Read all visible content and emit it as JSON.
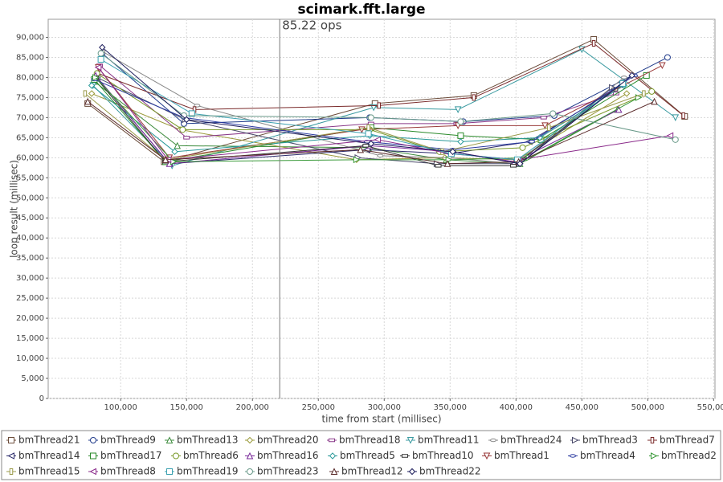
{
  "chart_data": {
    "type": "line",
    "title": "scimark.fft.large",
    "x_label": "time from start (millisec)",
    "y_label": "loop result (millisec)",
    "xlim": [
      45000,
      551000
    ],
    "ylim": [
      0,
      94500
    ],
    "grid": true,
    "legend": "bottom",
    "marker": {
      "x": 220700,
      "label": "85.22 ops"
    },
    "xticks": [
      {
        "value": 100000,
        "label": "100,000"
      },
      {
        "value": 150000,
        "label": "150,000"
      },
      {
        "value": 200000,
        "label": "200,000"
      },
      {
        "value": 250000,
        "label": "250,000"
      },
      {
        "value": 300000,
        "label": "300,000"
      },
      {
        "value": 350000,
        "label": "350,000"
      },
      {
        "value": 400000,
        "label": "400,000"
      },
      {
        "value": 450000,
        "label": "450,000"
      },
      {
        "value": 500000,
        "label": "500,000"
      },
      {
        "value": 550000,
        "label": "550,000"
      }
    ],
    "yticks": [
      0,
      {
        "value": 5000,
        "label": "5,000"
      },
      {
        "value": 10000,
        "label": "10,000"
      },
      {
        "value": 15000,
        "label": "15,000"
      },
      {
        "value": 20000,
        "label": "20,000"
      },
      {
        "value": 25000,
        "label": "25,000"
      },
      {
        "value": 30000,
        "label": "30,000"
      },
      {
        "value": 35000,
        "label": "35,000"
      },
      {
        "value": 40000,
        "label": "40,000"
      },
      {
        "value": 45000,
        "label": "45,000"
      },
      {
        "value": 50000,
        "label": "50,000"
      },
      {
        "value": 55000,
        "label": "55,000"
      },
      {
        "value": 60000,
        "label": "60,000"
      },
      {
        "value": 65000,
        "label": "65,000"
      },
      {
        "value": 70000,
        "label": "70,000"
      },
      {
        "value": 75000,
        "label": "75,000"
      },
      {
        "value": 80000,
        "label": "80,000"
      },
      {
        "value": 85000,
        "label": "85,000"
      },
      {
        "value": 90000,
        "label": "90,000"
      }
    ],
    "series": [
      {
        "name": "bmThread21",
        "color": "#6b4c3a",
        "x": [
          75000,
          133000,
          293000,
          368000,
          459000,
          528000
        ],
        "values": [
          73500,
          59000,
          73500,
          75500,
          89500,
          70300
        ]
      },
      {
        "name": "bmThread9",
        "color": "#1f3a8a",
        "x": [
          86000,
          148000,
          289000,
          360000,
          429000,
          515000
        ],
        "values": [
          86000,
          68500,
          70000,
          69000,
          70500,
          85000
        ]
      },
      {
        "name": "bmThread13",
        "color": "#3a8a3a",
        "x": [
          80000,
          143000,
          288000,
          347000,
          403000,
          477000
        ],
        "values": [
          79000,
          63000,
          62500,
          59500,
          58500,
          72000
        ]
      },
      {
        "name": "bmThread20",
        "color": "#9a9a3a",
        "x": [
          78000,
          145000,
          279000,
          346000,
          401000,
          484000
        ],
        "values": [
          76000,
          67000,
          59500,
          60000,
          59500,
          76000
        ]
      },
      {
        "name": "bmThread18",
        "color": "#8a3a8a",
        "x": [
          84000,
          150000,
          290000,
          355000,
          421000,
          476000
        ],
        "values": [
          83000,
          65000,
          68500,
          68500,
          70000,
          76000
        ]
      },
      {
        "name": "bmThread11",
        "color": "#3a9aa0",
        "x": [
          79000,
          139000,
          292000,
          356000,
          450000,
          521000
        ],
        "values": [
          78000,
          58000,
          72500,
          72000,
          87000,
          70000
        ]
      },
      {
        "name": "bmThread24",
        "color": "#888888",
        "x": [
          86000,
          158000,
          297000,
          349000,
          400000,
          482000
        ],
        "values": [
          86500,
          73000,
          60500,
          60000,
          58500,
          80000
        ]
      },
      {
        "name": "bmThread3",
        "color": "#4a4a6a",
        "x": [
          82000,
          149000,
          280000,
          340000,
          403000,
          473000
        ],
        "values": [
          80000,
          69500,
          60000,
          58500,
          58500,
          77500
        ]
      },
      {
        "name": "bmThread7",
        "color": "#7a2a2a",
        "x": [
          83000,
          156000,
          296000,
          368000,
          459000,
          527000
        ],
        "values": [
          81000,
          72000,
          73000,
          75000,
          88500,
          70500
        ]
      },
      {
        "name": "bmThread14",
        "color": "#2a2a6a",
        "x": [
          82000,
          137000,
          287000,
          350000,
          410000,
          480000
        ],
        "values": [
          80000,
          58500,
          62000,
          61000,
          64000,
          78000
        ]
      },
      {
        "name": "bmThread17",
        "color": "#2a8a2a",
        "x": [
          80000,
          134000,
          290000,
          358000,
          419000,
          499000
        ],
        "values": [
          79500,
          59000,
          67500,
          65500,
          64500,
          80500
        ]
      },
      {
        "name": "bmThread6",
        "color": "#7a9a2a",
        "x": [
          82000,
          147000,
          289000,
          342000,
          405000,
          503000
        ],
        "values": [
          81000,
          67000,
          67000,
          61500,
          62500,
          76500
        ]
      },
      {
        "name": "bmThread16",
        "color": "#7a2a9a",
        "x": [
          81000,
          137000,
          289000,
          351000,
          399000,
          478000
        ],
        "values": [
          80500,
          58500,
          63000,
          61500,
          59000,
          72000
        ]
      },
      {
        "name": "bmThread5",
        "color": "#2a9a9a",
        "x": [
          78000,
          141000,
          289000,
          358000,
          418000,
          482000
        ],
        "values": [
          78000,
          61500,
          65500,
          64000,
          65000,
          78000
        ]
      },
      {
        "name": "bmThread10",
        "color": "#333333",
        "x": [
          81000,
          134000,
          286000,
          341000,
          398000,
          475000
        ],
        "values": [
          80000,
          59000,
          63000,
          58000,
          58000,
          77000
        ]
      },
      {
        "name": "bmThread1",
        "color": "#9a3a3a",
        "x": [
          83000,
          137000,
          283000,
          356000,
          422000,
          511000
        ],
        "values": [
          82500,
          60000,
          67000,
          68000,
          68000,
          83000
        ]
      },
      {
        "name": "bmThread4",
        "color": "#2a3aa0",
        "x": [
          80000,
          148000,
          287000,
          352000,
          412000,
          490000
        ],
        "values": [
          79500,
          70000,
          64000,
          62000,
          64000,
          80500
        ]
      },
      {
        "name": "bmThread2",
        "color": "#3a9a3a",
        "x": [
          81000,
          140000,
          279000,
          349000,
          410000,
          493000
        ],
        "values": [
          80000,
          59000,
          59500,
          59500,
          60000,
          75000
        ]
      },
      {
        "name": "bmThread15",
        "color": "#9a9a4a",
        "x": [
          73000,
          134000,
          288000,
          344000,
          425000,
          497000
        ],
        "values": [
          76000,
          59500,
          67500,
          61500,
          67500,
          76000
        ]
      },
      {
        "name": "bmThread8",
        "color": "#8a2a8a",
        "x": [
          83000,
          136000,
          295000,
          350000,
          402000,
          517000
        ],
        "values": [
          82500,
          59500,
          64500,
          61000,
          59500,
          65500
        ]
      },
      {
        "name": "bmThread19",
        "color": "#3aa0b0",
        "x": [
          85000,
          154000,
          288000,
          351000,
          401000,
          481000
        ],
        "values": [
          84500,
          71000,
          66000,
          61000,
          59500,
          78500
        ]
      },
      {
        "name": "bmThread23",
        "color": "#6a9a8a",
        "x": [
          85000,
          148000,
          290000,
          358000,
          428000,
          521000
        ],
        "values": [
          86000,
          70500,
          70000,
          69000,
          71000,
          64500
        ]
      },
      {
        "name": "bmThread12",
        "color": "#5a2a2a",
        "x": [
          75000,
          134000,
          282000,
          348000,
          402000,
          505000
        ],
        "values": [
          74000,
          59500,
          62000,
          58500,
          59000,
          74000
        ]
      },
      {
        "name": "bmThread22",
        "color": "#1a1a5a",
        "x": [
          86000,
          150000,
          290000,
          352000,
          403000,
          488000
        ],
        "values": [
          87500,
          69500,
          63500,
          61500,
          58500,
          80500
        ]
      }
    ]
  }
}
